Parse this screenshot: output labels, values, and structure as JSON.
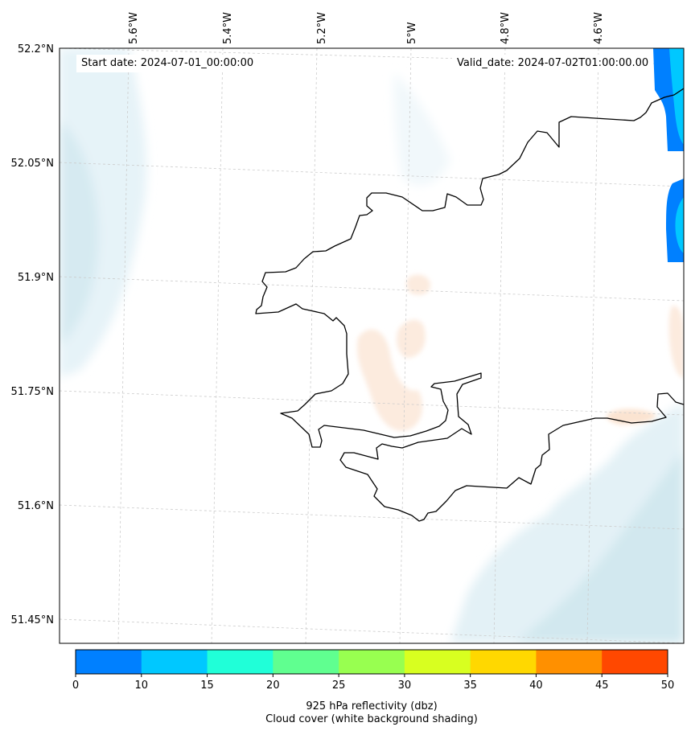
{
  "map": {
    "start_date_label": "Start date: 2024-07-01_00:00:00",
    "valid_date_label": "Valid_date: 2024-07-02T01:00:00.00",
    "longitude_ticks": [
      "5.6°W",
      "5.4°W",
      "5.2°W",
      "5°W",
      "4.8°W",
      "4.6°W"
    ],
    "latitude_ticks": [
      "52.2°N",
      "52.05°N",
      "51.9°N",
      "51.75°N",
      "51.6°N",
      "51.45°N"
    ],
    "coastline_color": "#000000",
    "gridline_color": "#cccccc",
    "cloud_shading_color": "#d9ecf2"
  },
  "colorbar": {
    "title": "925 hPa reflectivity (dbz)",
    "subtitle": "Cloud cover (white background shading)",
    "ticks": [
      "0",
      "10",
      "15",
      "20",
      "25",
      "30",
      "35",
      "40",
      "45",
      "50"
    ],
    "colors": [
      "#0080ff",
      "#00c8ff",
      "#20ffd8",
      "#60ff90",
      "#98ff50",
      "#d8ff20",
      "#ffd800",
      "#ff9000",
      "#ff4800"
    ]
  }
}
